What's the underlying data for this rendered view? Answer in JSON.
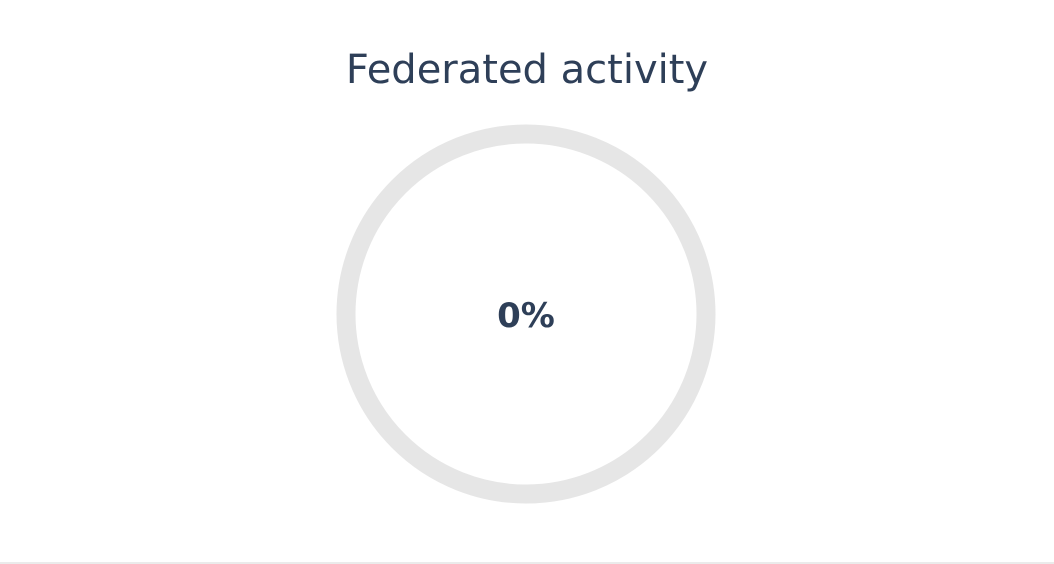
{
  "title": "Federated activity",
  "progress": {
    "value": 0,
    "max": 100,
    "label": "0%"
  },
  "colors": {
    "text": "#2e3f58",
    "track": "#e6e6e6",
    "fill": "#2e3f58",
    "background": "#ffffff"
  }
}
